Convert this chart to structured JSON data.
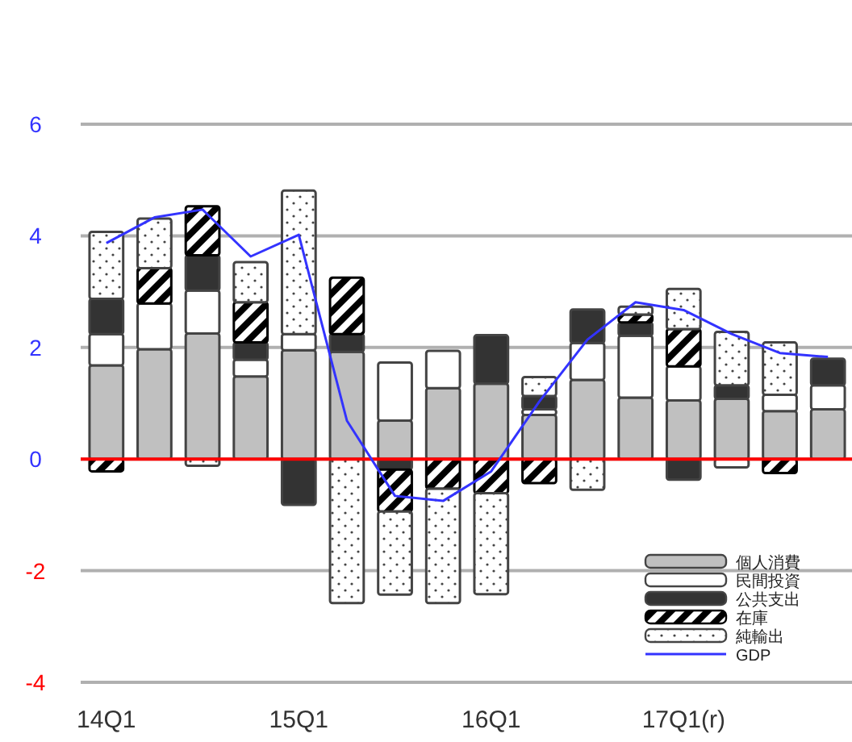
{
  "chart_data": {
    "type": "bar",
    "stacked": true,
    "categories": [
      "14Q1",
      null,
      null,
      null,
      "15Q1",
      null,
      null,
      null,
      "16Q1",
      null,
      null,
      null,
      "17Q1(r)",
      null,
      null,
      null
    ],
    "ylim": [
      -4,
      6
    ],
    "yticks": [
      -4,
      -2,
      0,
      2,
      4,
      6
    ],
    "grid": "y",
    "legend": "bottom right",
    "ref_lines": [
      {
        "axis": "y",
        "value": 0,
        "color": "#ff0000"
      }
    ],
    "series": [
      {
        "name": "個人消費",
        "color": "#c0c0c0",
        "values": [
          1.68,
          1.97,
          2.25,
          1.48,
          1.95,
          1.92,
          0.69,
          1.27,
          1.35,
          0.79,
          1.42,
          1.1,
          1.05,
          1.08,
          0.86,
          0.89
        ]
      },
      {
        "name": "民間投資",
        "color": "#ffffff",
        "values": [
          0.56,
          0.82,
          0.77,
          0.3,
          0.29,
          null,
          1.04,
          0.67,
          null,
          0.1,
          0.66,
          1.11,
          0.61,
          -0.15,
          0.29,
          0.43
        ]
      },
      {
        "name": "公共支出",
        "color": "#333333",
        "values": [
          0.63,
          null,
          0.63,
          0.31,
          -0.82,
          0.32,
          -0.19,
          null,
          0.87,
          0.24,
          0.6,
          0.24,
          -0.37,
          0.24,
          null,
          0.48
        ]
      },
      {
        "name": "在庫",
        "color": "#000000",
        "values": [
          -0.22,
          0.63,
          0.88,
          0.72,
          null,
          1.01,
          -0.75,
          -0.53,
          -0.61,
          -0.43,
          null,
          0.14,
          0.67,
          null,
          -0.25,
          null
        ]
      },
      {
        "name": "純輸出",
        "color": "#444444",
        "values": [
          1.2,
          0.89,
          -0.12,
          0.72,
          2.57,
          -2.58,
          -1.49,
          -2.05,
          -1.81,
          0.34,
          -0.55,
          0.14,
          0.72,
          0.96,
          0.94,
          null
        ]
      },
      {
        "name": "GDP",
        "type": "line",
        "color": "#3333ff",
        "values": [
          3.87,
          4.33,
          4.47,
          3.63,
          4.02,
          0.69,
          -0.66,
          -0.75,
          -0.22,
          1.03,
          2.14,
          2.81,
          2.67,
          2.24,
          1.9,
          1.83
        ]
      }
    ]
  }
}
